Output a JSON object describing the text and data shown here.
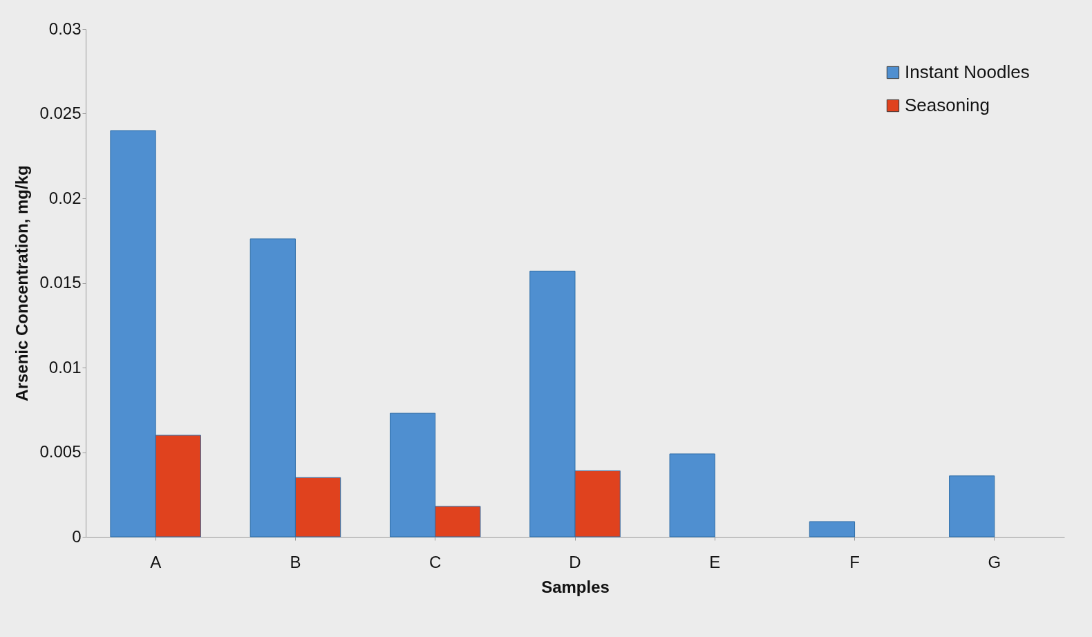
{
  "chart_data": {
    "type": "bar",
    "xlabel": "Samples",
    "ylabel": "Arsenic Concentration, mg/kg",
    "categories": [
      "A",
      "B",
      "C",
      "D",
      "E",
      "F",
      "G"
    ],
    "series": [
      {
        "name": "Instant Noodles",
        "color": "#4f8fd0",
        "values": [
          0.024,
          0.0176,
          0.0073,
          0.0157,
          0.0049,
          0.0009,
          0.0036
        ]
      },
      {
        "name": "Seasoning",
        "color": "#e0421e",
        "values": [
          0.006,
          0.0035,
          0.0018,
          0.0039,
          null,
          null,
          null
        ]
      }
    ],
    "ylim": [
      0,
      0.03
    ],
    "yticks": [
      0,
      0.005,
      0.01,
      0.015,
      0.02,
      0.025,
      0.03
    ],
    "grid": false,
    "legend": "top right"
  }
}
